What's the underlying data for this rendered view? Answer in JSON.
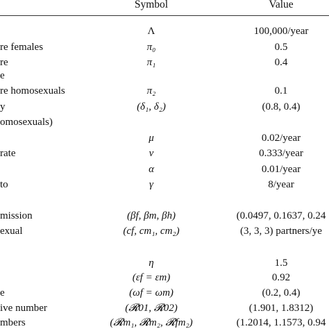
{
  "header": {
    "symbol": "Symbol",
    "value": "Value"
  },
  "rows": [
    {
      "desc": "",
      "symbol": "Λ",
      "value": "100,000/year"
    },
    {
      "desc": "re females",
      "symbol": "π₀",
      "value": "0.5"
    },
    {
      "desc": "re",
      "symbol": "π₁",
      "value": "0.4"
    },
    {
      "desc": "e",
      "symbol": "",
      "value": ""
    },
    {
      "desc": "re homosexuals",
      "symbol": "π₂",
      "value": "0.1"
    },
    {
      "desc": "y",
      "symbol": "(δ₁, δ₂)",
      "value": "(0.8, 0.4)"
    },
    {
      "desc": "omosexuals)",
      "symbol": "",
      "value": ""
    },
    {
      "desc": "",
      "symbol": "μ",
      "value": "0.02/year"
    },
    {
      "desc": "rate",
      "symbol": "ν",
      "value": "0.333/year"
    },
    {
      "desc": "",
      "symbol": "α",
      "value": "0.01/year"
    },
    {
      "desc": "to",
      "symbol": "γ",
      "value": "8/year"
    },
    {
      "desc": "mission",
      "symbol": "(βf, βm, βh)",
      "value": "(0.0497, 0.1637, 0.24"
    },
    {
      "desc": "exual",
      "symbol": "(cf, cm₁, cm₂)",
      "value": "(3, 3, 3) partners/ye"
    },
    {
      "desc": "",
      "symbol": "η",
      "value": "1.5"
    },
    {
      "desc": "",
      "symbol": "(εf = εm)",
      "value": "0.92"
    },
    {
      "desc": "e",
      "symbol": "(ωf = ωm)",
      "value": "(0.2, 0.4)"
    },
    {
      "desc": "ive number",
      "symbol": "(𝓡01, 𝓡02)",
      "value": "(1.901, 1.8312)"
    },
    {
      "desc": "mbers",
      "symbol": "(𝓡m₁, 𝓡m₂, 𝓡fm₂)",
      "value": "(1.2014, 1.1573, 0.94"
    }
  ]
}
